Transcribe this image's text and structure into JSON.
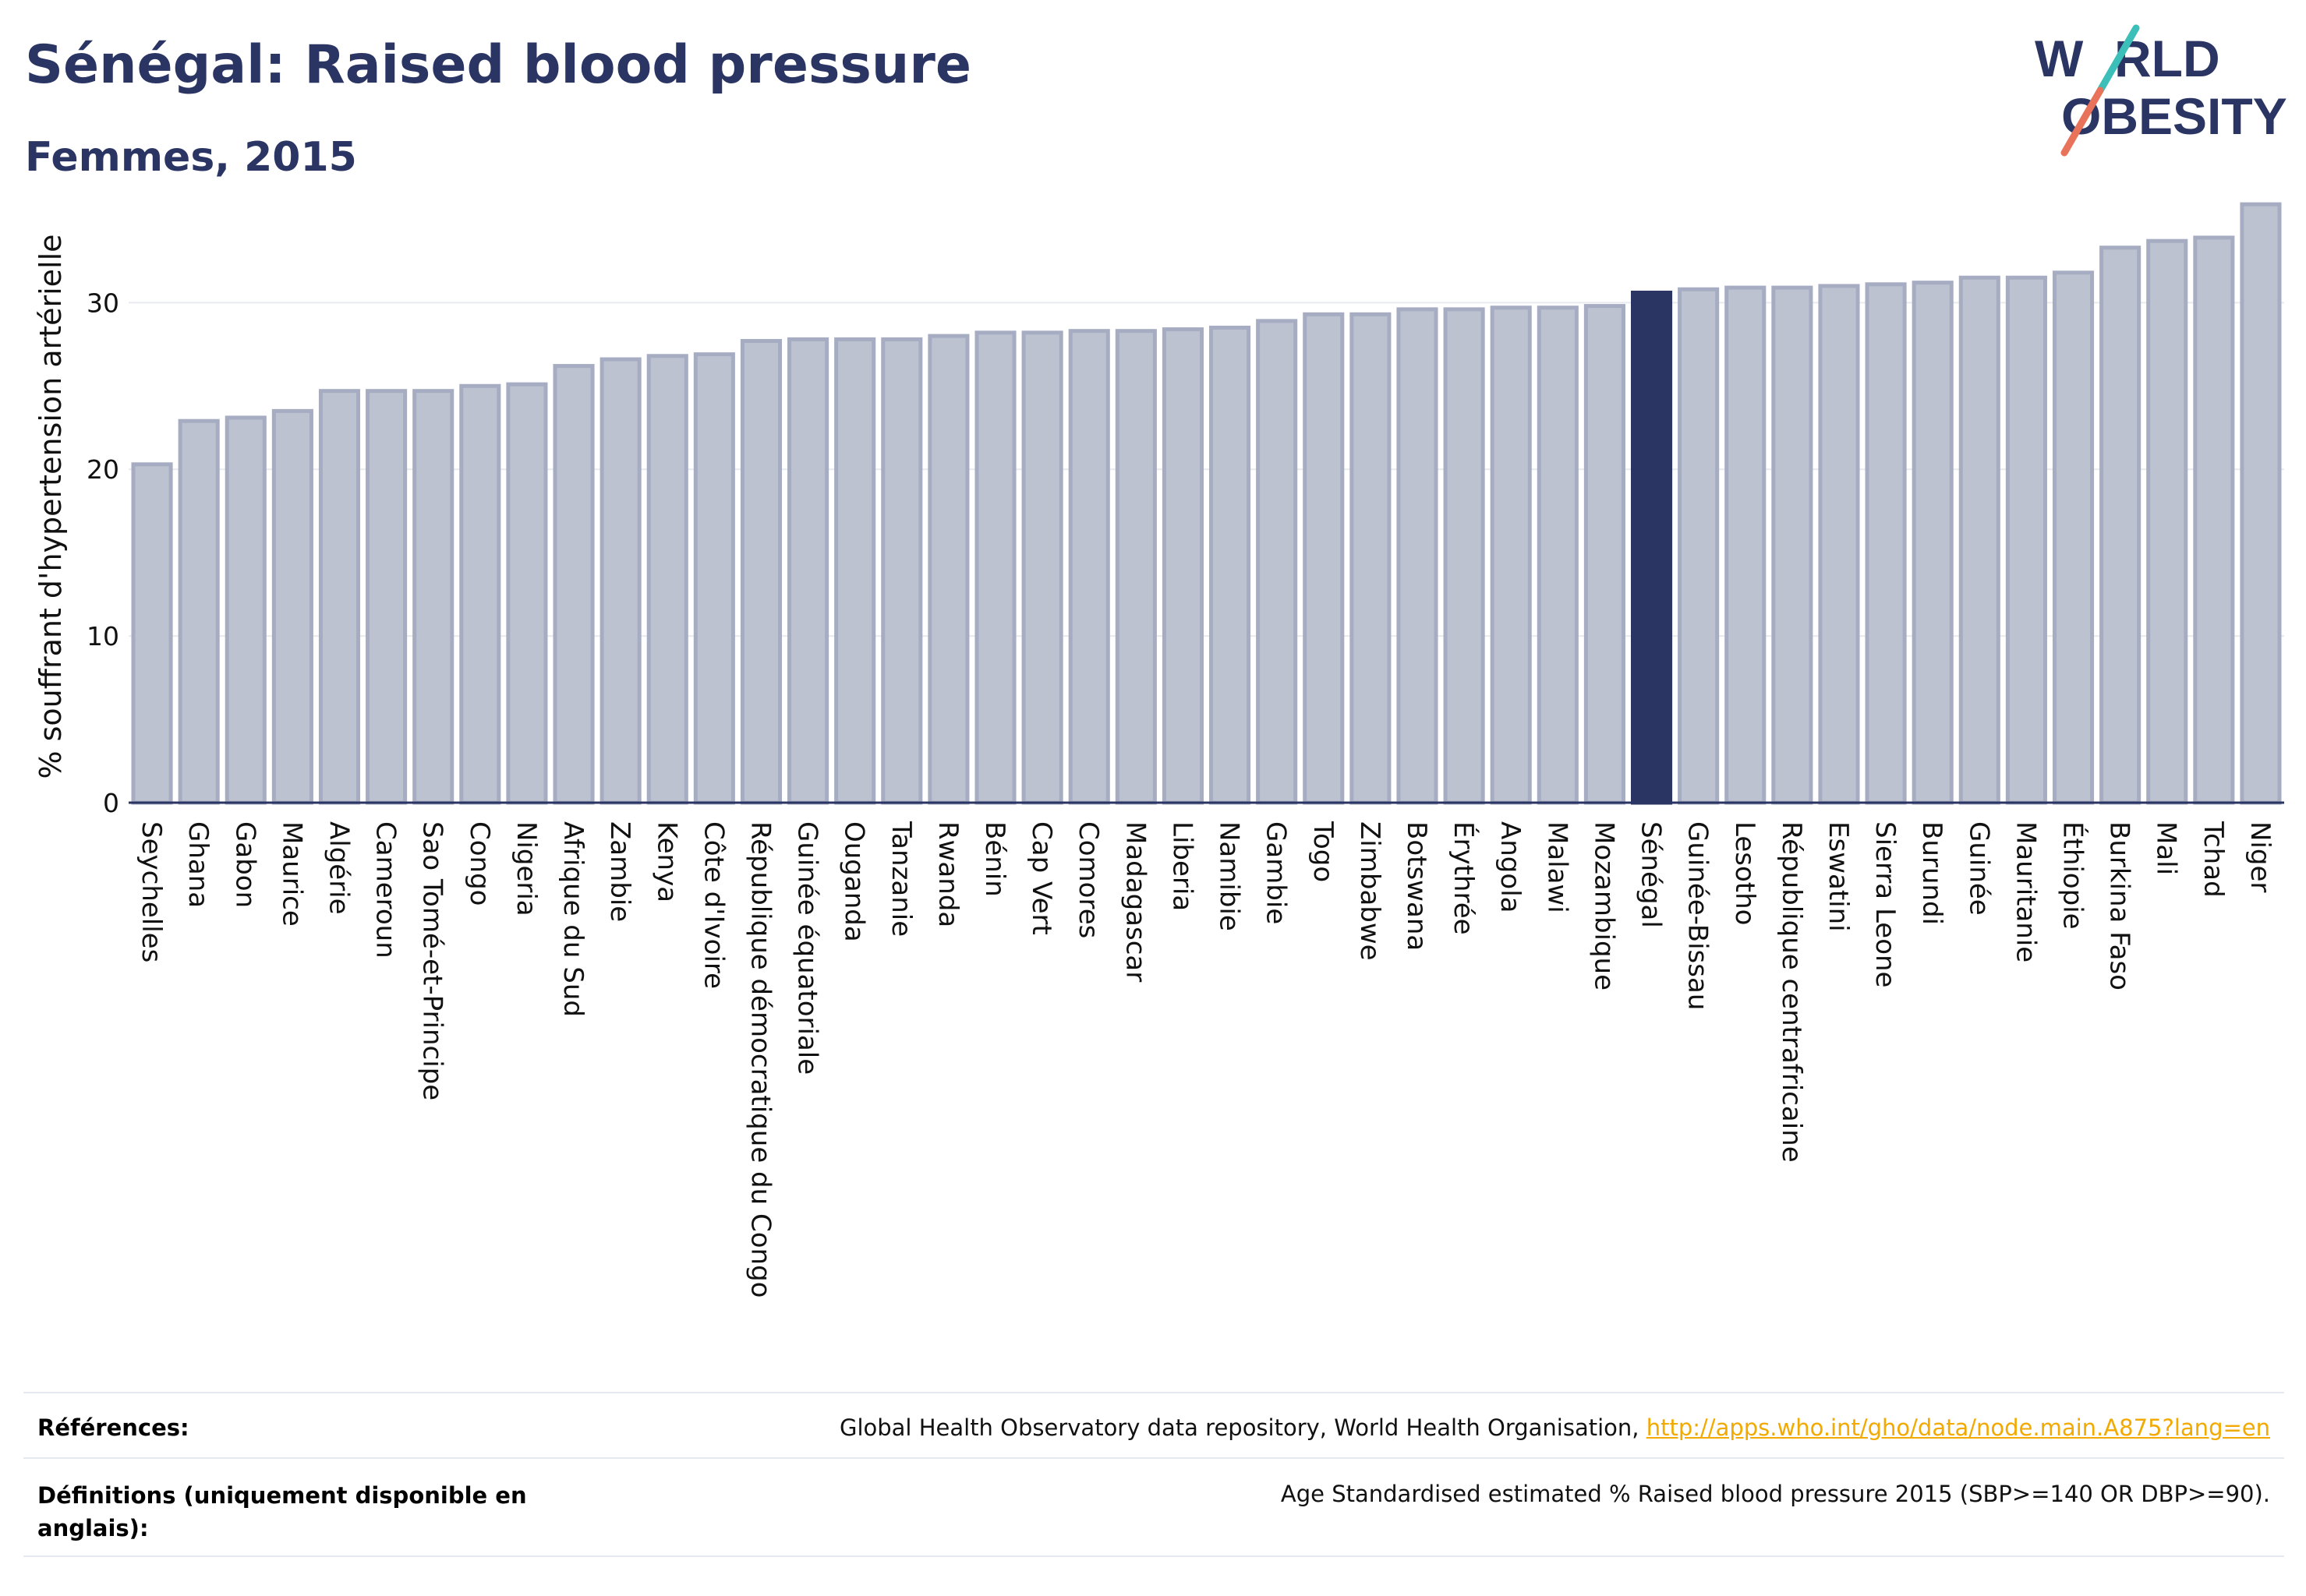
{
  "header": {
    "title": "Sénégal: Raised blood pressure",
    "subtitle": "Femmes, 2015"
  },
  "logo": {
    "line1_left": "W",
    "line1_right": "RLD",
    "line2": "OBESITY",
    "text_color": "#2b3564",
    "slash_colors": [
      "#3bbfb8",
      "#e8735a"
    ]
  },
  "colors": {
    "bar_default": "#bdc2d1",
    "bar_edge": "#a6acc1",
    "bar_highlight": "#2b3564",
    "grid": "#e8eaef",
    "axis": "#2b3564"
  },
  "chart_data": {
    "type": "bar",
    "title": "",
    "xlabel": "",
    "ylabel": "% souffrant d'hypertension artérielle",
    "ylim": [
      0,
      36
    ],
    "yticks": [
      0,
      10,
      20,
      30
    ],
    "grid": true,
    "highlight": "Sénégal",
    "categories": [
      "Seychelles",
      "Ghana",
      "Gabon",
      "Maurice",
      "Algérie",
      "Cameroun",
      "Sao Tomé-et-Principe",
      "Congo",
      "Nigeria",
      "Afrique du Sud",
      "Zambie",
      "Kenya",
      "Côte d'Ivoire",
      "République démocratique du Congo",
      "Guinée équatoriale",
      "Ouganda",
      "Tanzanie",
      "Rwanda",
      "Bénin",
      "Cap Vert",
      "Comores",
      "Madagascar",
      "Liberia",
      "Namibie",
      "Gambie",
      "Togo",
      "Zimbabwe",
      "Botswana",
      "Érythrée",
      "Angola",
      "Malawi",
      "Mozambique",
      "Sénégal",
      "Guinée-Bissau",
      "Lesotho",
      "République centrafricaine",
      "Eswatini",
      "Sierra Leone",
      "Burundi",
      "Guinée",
      "Mauritanie",
      "Éthiopie",
      "Burkina Faso",
      "Mali",
      "Tchad",
      "Niger"
    ],
    "values": [
      20.3,
      22.9,
      23.1,
      23.5,
      24.7,
      24.7,
      24.7,
      25.0,
      25.1,
      26.2,
      26.6,
      26.8,
      26.9,
      27.7,
      27.8,
      27.8,
      27.8,
      28.0,
      28.2,
      28.2,
      28.3,
      28.3,
      28.4,
      28.5,
      28.9,
      29.3,
      29.3,
      29.6,
      29.6,
      29.7,
      29.7,
      29.8,
      30.6,
      30.8,
      30.9,
      30.9,
      31.0,
      31.1,
      31.2,
      31.5,
      31.5,
      31.8,
      33.3,
      33.7,
      33.9,
      35.9
    ]
  },
  "footer": {
    "references_label": "Références:",
    "references_text": "Global Health Observatory data repository, World Health Organisation, ",
    "references_link": "http://apps.who.int/gho/data/node.main.A875?lang=en",
    "definitions_label": "Définitions (uniquement disponible en anglais):",
    "definitions_text": "Age Standardised estimated % Raised blood pressure 2015 (SBP>=140 OR DBP>=90)."
  }
}
